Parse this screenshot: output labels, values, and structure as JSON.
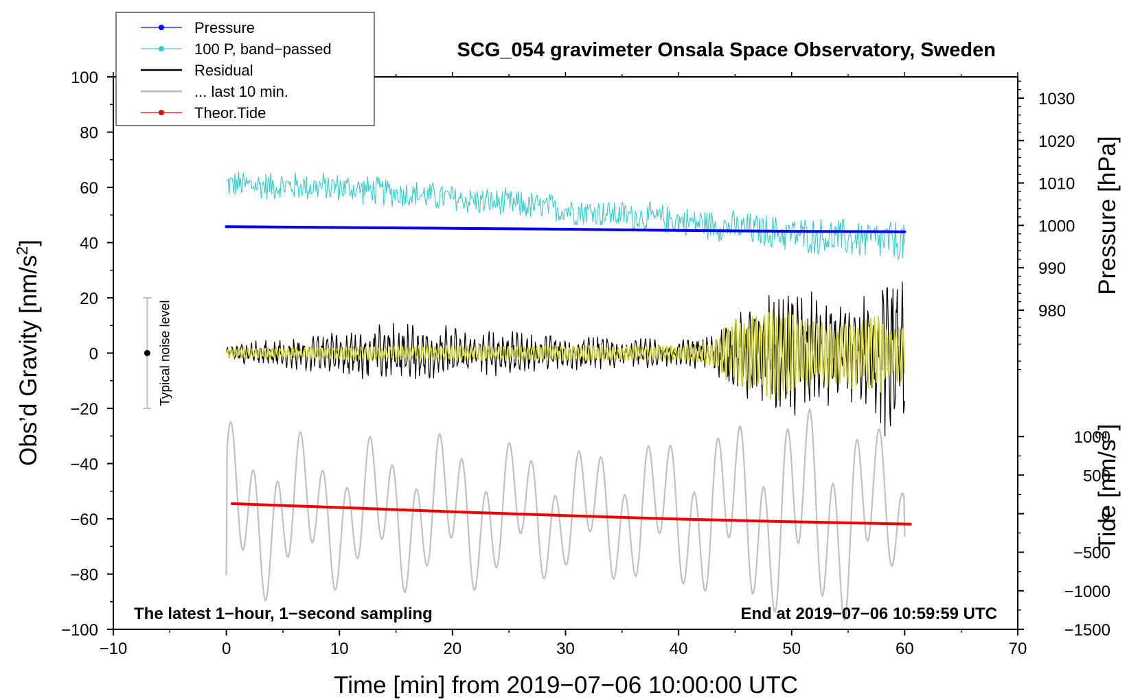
{
  "chart_data": {
    "type": "line",
    "title": "SCG_054 gravimeter Onsala Space Observatory, Sweden",
    "xlabel": "Time [min] from 2019−07−06 10:00:00 UTC",
    "ylabel": "Obs’d Gravity [nm/s²]",
    "ylabel_parts": [
      "Obs’d Gravity [nm/s",
      "2",
      "]"
    ],
    "y2label": "Pressure [hPa]",
    "y3label_parts": [
      "Tide [nm/s",
      "2",
      "]"
    ],
    "xlim": [
      -10,
      70
    ],
    "ylim": [
      -100,
      100
    ],
    "pressure_lim": [
      965,
      1034
    ],
    "tide_lim": [
      -1500,
      1500
    ],
    "xticks": [
      -10,
      0,
      10,
      20,
      30,
      40,
      50,
      60,
      70
    ],
    "xtick_labels": [
      "−10",
      "0",
      "10",
      "20",
      "30",
      "40",
      "50",
      "60",
      "70"
    ],
    "yticks": [
      100,
      80,
      60,
      40,
      20,
      0,
      -20,
      -40,
      -60,
      -80,
      -100
    ],
    "ytick_labels": [
      "100",
      "80",
      "60",
      "40",
      "20",
      "0",
      "−20",
      "−40",
      "−60",
      "−80",
      "−100"
    ],
    "pressure_ticks": [
      1030,
      1020,
      1010,
      1000,
      990,
      980
    ],
    "pressure_tick_labels": [
      "1030",
      "1020",
      "1010",
      "1000",
      "990",
      "980"
    ],
    "tide_ticks": [
      1000,
      500,
      0,
      -500,
      -1000,
      -1500
    ],
    "tide_tick_labels": [
      "1000",
      "500",
      "0",
      "−500",
      "−1000",
      "−1500"
    ],
    "legend": {
      "position": "top-left",
      "entries": [
        {
          "label": "Pressure",
          "color": "#0000ee",
          "marker": true
        },
        {
          "label": "100 P, band−passed",
          "color": "#33cccc",
          "marker": true
        },
        {
          "label": "Residual",
          "color": "#000000",
          "marker": false
        },
        {
          "label": "... last 10 min.",
          "color": "#c0c0c0",
          "marker": false
        },
        {
          "label": "Theor.Tide",
          "color": "#ee0000",
          "marker": true
        }
      ]
    },
    "annotations": {
      "bottom_left": "The latest 1−hour, 1−second sampling",
      "bottom_right": "End at 2019−07−06 10:59:59 UTC",
      "noise_label": "Typical noise level",
      "noise_range": [
        -20,
        20
      ],
      "noise_x": -7
    },
    "series": [
      {
        "name": "Pressure",
        "axis": "pressure",
        "color": "#0000ee",
        "x": [
          0,
          10,
          20,
          30,
          40,
          50,
          60
        ],
        "y": [
          999.7,
          999.5,
          999.3,
          999.1,
          998.8,
          998.6,
          998.5
        ]
      },
      {
        "name": "Theor.Tide",
        "axis": "tide",
        "color": "#ee0000",
        "x": [
          0.5,
          10,
          20,
          30,
          40,
          50,
          60.5
        ],
        "y": [
          130,
          80,
          25,
          -25,
          -70,
          -105,
          -135
        ]
      },
      {
        "name": "100 P, band−passed",
        "axis": "gravity",
        "color": "#33cccc",
        "x_start": 0,
        "x_end": 60,
        "trend": [
          [
            0,
            61
          ],
          [
            10,
            60
          ],
          [
            20,
            56
          ],
          [
            30,
            52
          ],
          [
            40,
            48
          ],
          [
            50,
            43
          ],
          [
            60,
            40
          ]
        ],
        "amplitude": [
          [
            0,
            6
          ],
          [
            20,
            6
          ],
          [
            40,
            6
          ],
          [
            55,
            8
          ],
          [
            60,
            9
          ]
        ]
      },
      {
        "name": "Residual",
        "axis": "gravity",
        "color": "#000000",
        "x_start": 0,
        "x_end": 60,
        "envelope": [
          [
            0,
            3
          ],
          [
            5,
            6
          ],
          [
            10,
            8
          ],
          [
            15,
            12
          ],
          [
            20,
            10
          ],
          [
            25,
            8
          ],
          [
            30,
            7
          ],
          [
            35,
            6
          ],
          [
            40,
            5
          ],
          [
            43,
            7
          ],
          [
            45,
            15
          ],
          [
            48,
            22
          ],
          [
            50,
            25
          ],
          [
            52,
            22
          ],
          [
            55,
            18
          ],
          [
            57,
            25
          ],
          [
            58.8,
            38
          ],
          [
            60,
            30
          ]
        ]
      },
      {
        "name": "Residual (band−passed)",
        "axis": "gravity",
        "color": "#cccc22",
        "x_start": 0,
        "x_end": 60,
        "envelope": [
          [
            0,
            2
          ],
          [
            10,
            2.5
          ],
          [
            20,
            3
          ],
          [
            30,
            3
          ],
          [
            40,
            3
          ],
          [
            43,
            5
          ],
          [
            45,
            14
          ],
          [
            48,
            18
          ],
          [
            50,
            18
          ],
          [
            52,
            12
          ],
          [
            55,
            14
          ],
          [
            58,
            15
          ],
          [
            60,
            10
          ]
        ]
      },
      {
        "name": "... last 10 min.",
        "axis": "tide",
        "color": "#c0c0c0",
        "x_start": 0,
        "x_end": 60,
        "start_value": -800,
        "end_value": -300,
        "envelope": [
          [
            0,
            1200
          ],
          [
            10,
            1000
          ],
          [
            20,
            1100
          ],
          [
            30,
            900
          ],
          [
            40,
            1100
          ],
          [
            50,
            1500
          ],
          [
            55,
            1500
          ],
          [
            60,
            900
          ]
        ]
      }
    ]
  }
}
